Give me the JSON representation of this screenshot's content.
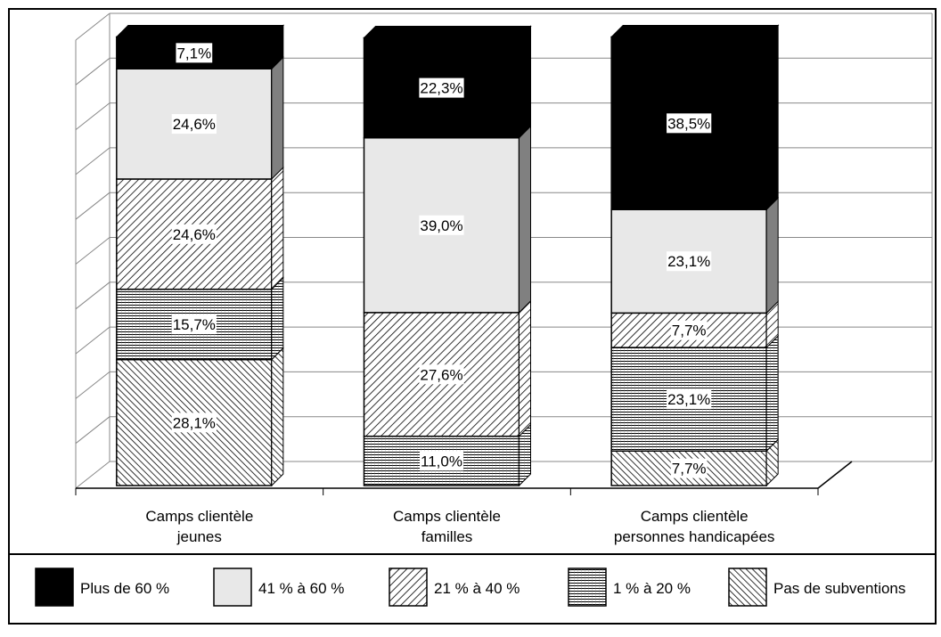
{
  "chart_data": {
    "type": "stacked-bar-3d",
    "categories": [
      "Camps clientèle jeunes",
      "Camps clientèle familles",
      "Camps clientèle personnes handicapées"
    ],
    "category_lines": [
      [
        "Camps clientèle",
        "jeunes"
      ],
      [
        "Camps clientèle",
        "familles"
      ],
      [
        "Camps clientèle",
        "personnes handicapées"
      ]
    ],
    "series": [
      {
        "name": "Plus de 60 %",
        "color": "#000000",
        "values": [
          7.1,
          22.3,
          38.5
        ],
        "value_labels": [
          "7,1%",
          "22,3%",
          "38,5%"
        ]
      },
      {
        "name": "41 % à 60 %",
        "color": "#e8e8e8",
        "values": [
          24.6,
          39.0,
          23.1
        ],
        "value_labels": [
          "24,6%",
          "39,0%",
          "23,1%"
        ]
      },
      {
        "name": "21 % à 40 %",
        "color": "#ffffff",
        "values": [
          24.6,
          27.6,
          7.7
        ],
        "value_labels": [
          "24,6%",
          "27,6%",
          "7,7%"
        ]
      },
      {
        "name": "1 % à 20 %",
        "color": "#ffffff",
        "values": [
          15.7,
          11.0,
          23.1
        ],
        "value_labels": [
          "15,7%",
          "11,0%",
          "23,1%"
        ]
      },
      {
        "name": "Pas de subventions",
        "color": "#ffffff",
        "values": [
          28.1,
          null,
          7.7
        ],
        "value_labels": [
          "28,1%",
          null,
          "7,7%"
        ]
      }
    ],
    "ylim": [
      0,
      100
    ],
    "yticks": [
      0,
      10,
      20,
      30,
      40,
      50,
      60,
      70,
      80,
      90,
      100
    ],
    "grid": true,
    "legend": "bottom"
  }
}
